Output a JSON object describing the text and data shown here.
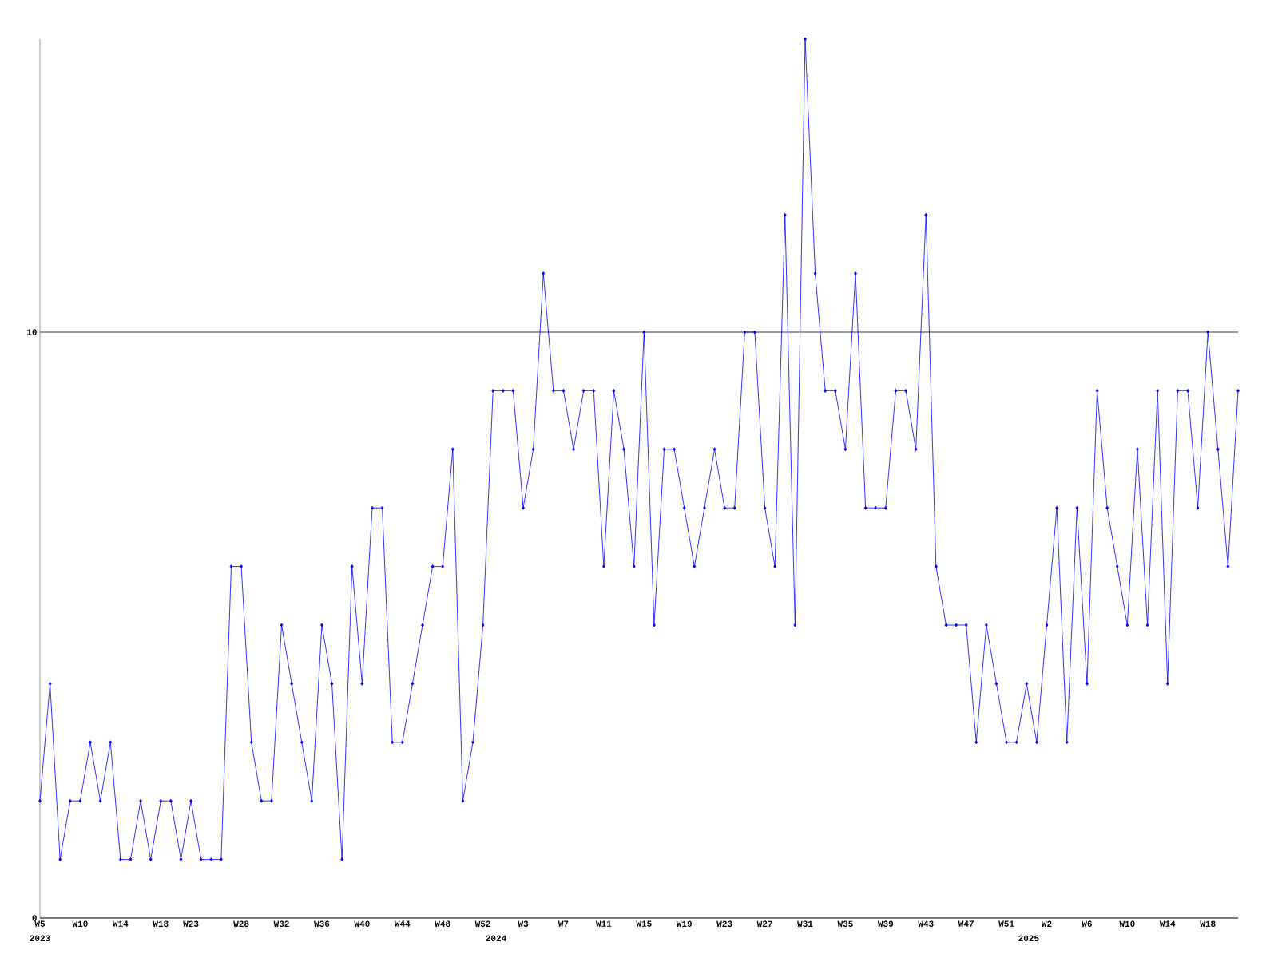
{
  "chart_data": {
    "type": "line",
    "categories": [
      "W5",
      null,
      null,
      null,
      "W10",
      null,
      null,
      null,
      "W14",
      null,
      null,
      null,
      "W18",
      null,
      null,
      "W23",
      null,
      null,
      null,
      null,
      "W28",
      null,
      null,
      null,
      "W32",
      null,
      null,
      null,
      "W36",
      null,
      null,
      null,
      "W40",
      null,
      null,
      null,
      "W44",
      null,
      null,
      null,
      "W48",
      null,
      null,
      null,
      "W52",
      null,
      null,
      null,
      "W3",
      null,
      null,
      null,
      "W7",
      null,
      null,
      null,
      "W11",
      null,
      null,
      null,
      "W15",
      null,
      null,
      null,
      "W19",
      null,
      null,
      null,
      "W23",
      null,
      null,
      null,
      "W27",
      null,
      null,
      null,
      "W31",
      null,
      null,
      null,
      "W35",
      null,
      null,
      null,
      "W39",
      null,
      null,
      null,
      "W43",
      null,
      null,
      null,
      "W47",
      null,
      null,
      null,
      "W51",
      null,
      null,
      null,
      "W2",
      null,
      null,
      null,
      "W6",
      null,
      null,
      null,
      "W10",
      null,
      null,
      null,
      "W14",
      null,
      null,
      null,
      "W18",
      null,
      null,
      null
    ],
    "values": [
      2,
      4,
      1,
      2,
      2,
      3,
      2,
      3,
      1,
      1,
      2,
      1,
      2,
      2,
      1,
      2,
      1,
      1,
      1,
      6,
      6,
      3,
      2,
      2,
      5,
      4,
      3,
      2,
      5,
      4,
      1,
      6,
      4,
      7,
      7,
      3,
      3,
      4,
      5,
      6,
      6,
      8,
      2,
      3,
      5,
      9,
      9,
      9,
      7,
      8,
      11,
      9,
      9,
      8,
      9,
      9,
      6,
      9,
      8,
      6,
      10,
      5,
      8,
      8,
      7,
      6,
      7,
      8,
      7,
      7,
      10,
      10,
      7,
      6,
      12,
      5,
      15,
      11,
      9,
      9,
      8,
      11,
      7,
      7,
      7,
      9,
      9,
      8,
      12,
      6,
      5,
      5,
      5,
      3,
      5,
      4,
      3,
      3,
      4,
      3,
      5,
      7,
      3,
      7,
      4,
      9,
      7,
      6,
      5,
      8,
      5,
      9,
      4,
      9,
      9,
      7,
      10,
      8,
      6,
      9
    ],
    "color": "#0000ff",
    "ylim": [
      0,
      15
    ],
    "yticks": [
      0,
      10
    ],
    "grid": "y",
    "marker": "diamond",
    "annotations": [
      "2023",
      "2024",
      "2025"
    ]
  }
}
